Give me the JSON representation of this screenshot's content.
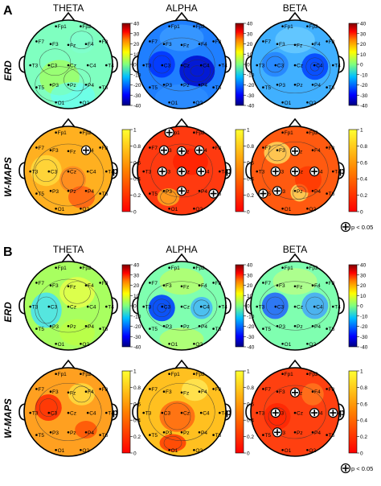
{
  "panels": [
    {
      "letter": "A",
      "p_note": "p < 0.05"
    },
    {
      "letter": "B",
      "p_note": "p < 0.05"
    }
  ],
  "bands": [
    "THETA",
    "ALPHA",
    "BETA"
  ],
  "row_labels": {
    "erd": "ERD",
    "wmaps": "W-MAPS"
  },
  "erd_colorbar": {
    "ticks": [
      "40",
      "30",
      "20",
      "10",
      "0",
      "-10",
      "-20",
      "-30",
      "-40"
    ]
  },
  "p_colorbar": {
    "ticks": [
      "1",
      "0.8",
      "0.6",
      "0.4",
      "0.2",
      "0"
    ],
    "axis_label": "p"
  },
  "electrodes": [
    "Fp1",
    "Fp2",
    "F7",
    "F3",
    "Fz",
    "F4",
    "F8",
    "T3",
    "C3",
    "Cz",
    "C4",
    "T4",
    "T5",
    "P3",
    "Pz",
    "P4",
    "T6",
    "O1",
    "O2"
  ],
  "colors": {
    "jet": [
      "#00007f",
      "#0000ff",
      "#007fff",
      "#00ffff",
      "#7fff7f",
      "#ffff00",
      "#ff7f00",
      "#ff0000",
      "#7f0000"
    ],
    "autumn": [
      "#ff0000",
      "#ff4000",
      "#ff8000",
      "#ffbf00",
      "#ffff00"
    ]
  }
}
